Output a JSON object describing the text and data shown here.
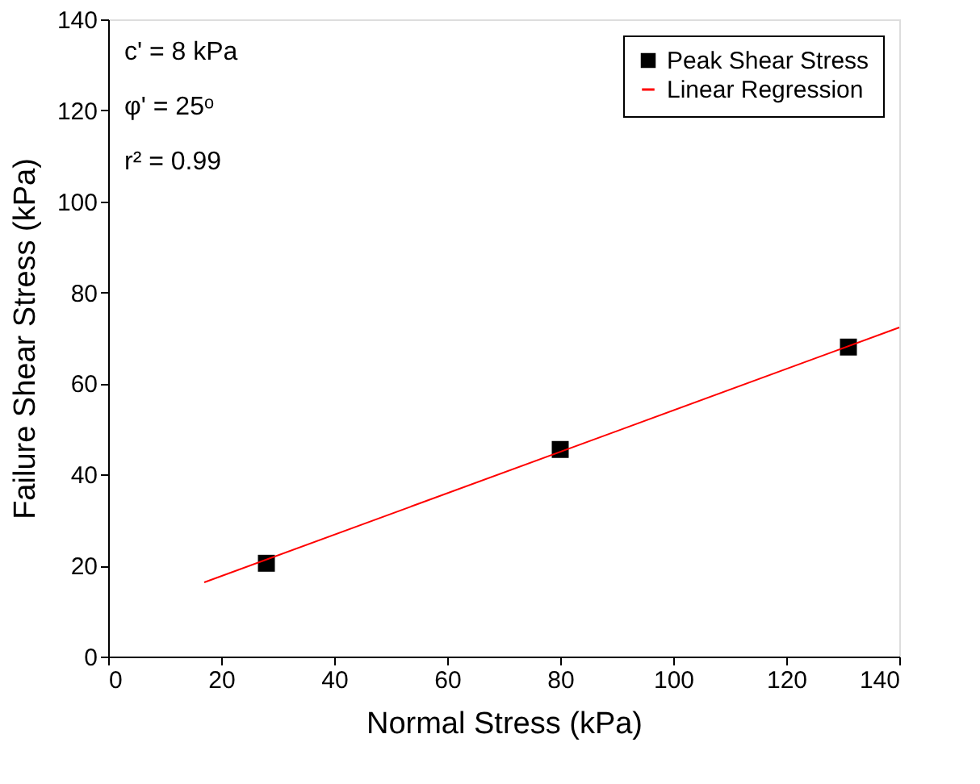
{
  "chart_data": {
    "type": "scatter",
    "xlabel": "Normal Stress (kPa)",
    "ylabel": "Failure Shear Stress (kPa)",
    "annotations": [
      "c' = 8 kPa",
      "φ' = 25ᵒ",
      "r² = 0.99"
    ],
    "series": [
      {
        "name": "Peak Shear Stress",
        "color": "#000000",
        "marker": "square",
        "x": [
          28,
          80,
          131
        ],
        "values": [
          20.5,
          45.5,
          68
        ]
      },
      {
        "name": "Linear Regression",
        "type": "line",
        "color": "#ff0000",
        "marker": "none",
        "x": [
          17,
          140
        ],
        "values": [
          16.3,
          72.3
        ]
      }
    ],
    "xlim": [
      0,
      140
    ],
    "xticks": [
      0,
      20,
      40,
      60,
      80,
      100,
      120,
      140
    ],
    "ylim": [
      0,
      140
    ],
    "yticks": [
      0,
      20,
      40,
      60,
      80,
      100,
      120,
      140
    ],
    "grid": false,
    "legend": "top right"
  }
}
